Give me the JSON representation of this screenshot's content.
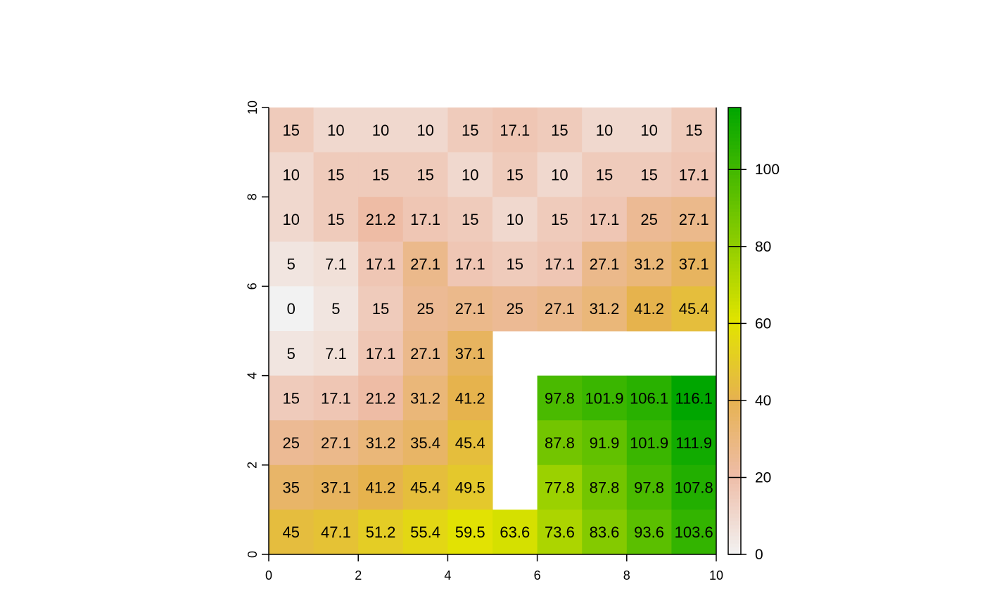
{
  "chart_data": {
    "type": "heatmap",
    "title": "",
    "xlabel": "",
    "ylabel": "",
    "xlim": [
      0,
      10
    ],
    "ylim": [
      0,
      10
    ],
    "x_ticks": [
      "0",
      "2",
      "4",
      "6",
      "8",
      "10"
    ],
    "y_ticks": [
      "0",
      "2",
      "4",
      "6",
      "8",
      "10"
    ],
    "grid": false,
    "legend": {
      "type": "colorbar",
      "position": "right",
      "range": [
        0,
        116.1
      ],
      "ticks": [
        "0",
        "20",
        "40",
        "60",
        "80",
        "100"
      ]
    },
    "colors": {
      "low": "#f2f2f2",
      "mid_low": "#eebca6",
      "mid": "#e6b24f",
      "high_mid": "#e2e400",
      "high": "#00a600",
      "missing": "#ffffff"
    },
    "rows": [
      [
        "15",
        "10",
        "10",
        "10",
        "15",
        "17.1",
        "15",
        "10",
        "10",
        "15"
      ],
      [
        "10",
        "15",
        "15",
        "15",
        "10",
        "15",
        "10",
        "15",
        "15",
        "17.1"
      ],
      [
        "10",
        "15",
        "21.2",
        "17.1",
        "15",
        "10",
        "15",
        "17.1",
        "25",
        "27.1"
      ],
      [
        "5",
        "7.1",
        "17.1",
        "27.1",
        "17.1",
        "15",
        "17.1",
        "27.1",
        "31.2",
        "37.1"
      ],
      [
        "0",
        "5",
        "15",
        "25",
        "27.1",
        "25",
        "27.1",
        "31.2",
        "41.2",
        "45.4"
      ],
      [
        "5",
        "7.1",
        "17.1",
        "27.1",
        "37.1",
        null,
        null,
        null,
        null,
        null
      ],
      [
        "15",
        "17.1",
        "21.2",
        "31.2",
        "41.2",
        null,
        "97.8",
        "101.9",
        "106.1",
        "116.1"
      ],
      [
        "25",
        "27.1",
        "31.2",
        "35.4",
        "45.4",
        null,
        "87.8",
        "91.9",
        "101.9",
        "111.9"
      ],
      [
        "35",
        "37.1",
        "41.2",
        "45.4",
        "49.5",
        null,
        "77.8",
        "87.8",
        "97.8",
        "107.8"
      ],
      [
        "45",
        "47.1",
        "51.2",
        "55.4",
        "59.5",
        "63.6",
        "73.6",
        "83.6",
        "93.6",
        "103.6"
      ]
    ]
  }
}
